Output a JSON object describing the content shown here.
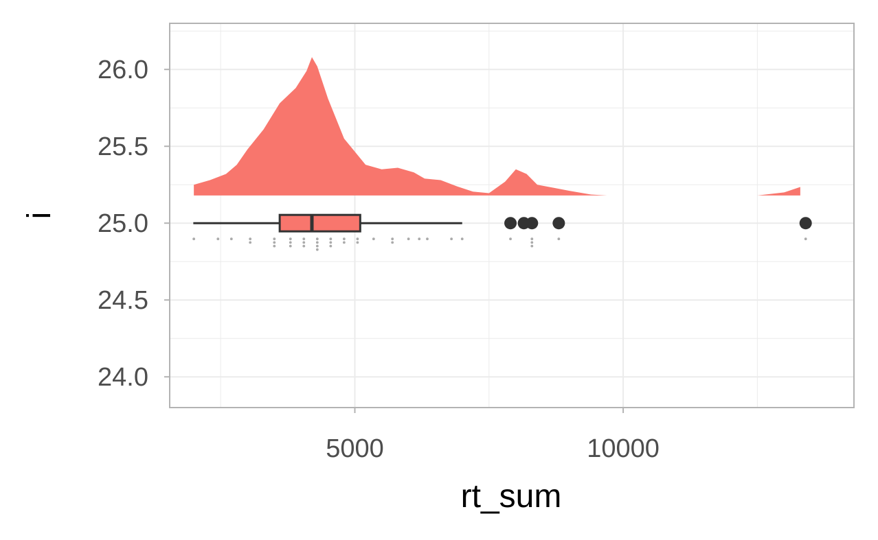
{
  "chart_data": {
    "type": "raincloud",
    "xlabel": "rt_sum",
    "ylabel": "i",
    "xlim": [
      1550,
      14300
    ],
    "ylim": [
      23.8,
      26.3
    ],
    "x_ticks": [
      5000,
      10000
    ],
    "x_tick_labels": [
      "5000",
      "10000"
    ],
    "y_ticks": [
      24.0,
      24.5,
      25.0,
      25.5,
      26.0
    ],
    "y_tick_labels": [
      "24.0",
      "24.5",
      "25.0",
      "25.5",
      "26.0"
    ],
    "grid": true,
    "fill_color": "#f8766d",
    "outline_color": "#333333",
    "point_color": "#aaaaaa",
    "density": {
      "baseline_y": 25.18,
      "x": [
        2000,
        2300,
        2600,
        2800,
        3000,
        3300,
        3600,
        3900,
        4100,
        4200,
        4300,
        4500,
        4800,
        5200,
        5500,
        5800,
        6100,
        6300,
        6600,
        6900,
        7200,
        7500,
        7800,
        8000,
        8200,
        8400,
        8700,
        9000,
        9400,
        9700,
        10000,
        10500,
        11000,
        11500,
        12000,
        12500,
        13000,
        13300
      ],
      "height": [
        0.07,
        0.1,
        0.14,
        0.2,
        0.3,
        0.43,
        0.6,
        0.7,
        0.81,
        0.9,
        0.84,
        0.63,
        0.37,
        0.2,
        0.17,
        0.18,
        0.15,
        0.11,
        0.1,
        0.06,
        0.025,
        0.015,
        0.09,
        0.17,
        0.14,
        0.07,
        0.05,
        0.03,
        0.006,
        0.0,
        0.0,
        0.0,
        0.0,
        0.0,
        0.0,
        0.0,
        0.02,
        0.055
      ]
    },
    "boxplot": {
      "y": 25.0,
      "whisker_low": 1990,
      "q1": 3600,
      "median": 4200,
      "q3": 5100,
      "whisker_high": 7000,
      "outliers": [
        7900,
        8150,
        8300,
        8800,
        13400
      ]
    },
    "raw_points": [
      {
        "x": 2000,
        "count": 1
      },
      {
        "x": 2450,
        "count": 1
      },
      {
        "x": 2700,
        "count": 1
      },
      {
        "x": 3050,
        "count": 2
      },
      {
        "x": 3500,
        "count": 3
      },
      {
        "x": 3800,
        "count": 3
      },
      {
        "x": 4050,
        "count": 3
      },
      {
        "x": 4300,
        "count": 4
      },
      {
        "x": 4550,
        "count": 3
      },
      {
        "x": 4800,
        "count": 2
      },
      {
        "x": 5050,
        "count": 2
      },
      {
        "x": 5350,
        "count": 1
      },
      {
        "x": 5700,
        "count": 2
      },
      {
        "x": 6000,
        "count": 1
      },
      {
        "x": 6200,
        "count": 1
      },
      {
        "x": 6350,
        "count": 1
      },
      {
        "x": 6800,
        "count": 1
      },
      {
        "x": 7000,
        "count": 1
      },
      {
        "x": 7900,
        "count": 1
      },
      {
        "x": 8300,
        "count": 3
      },
      {
        "x": 8800,
        "count": 1
      },
      {
        "x": 13400,
        "count": 1
      }
    ]
  }
}
